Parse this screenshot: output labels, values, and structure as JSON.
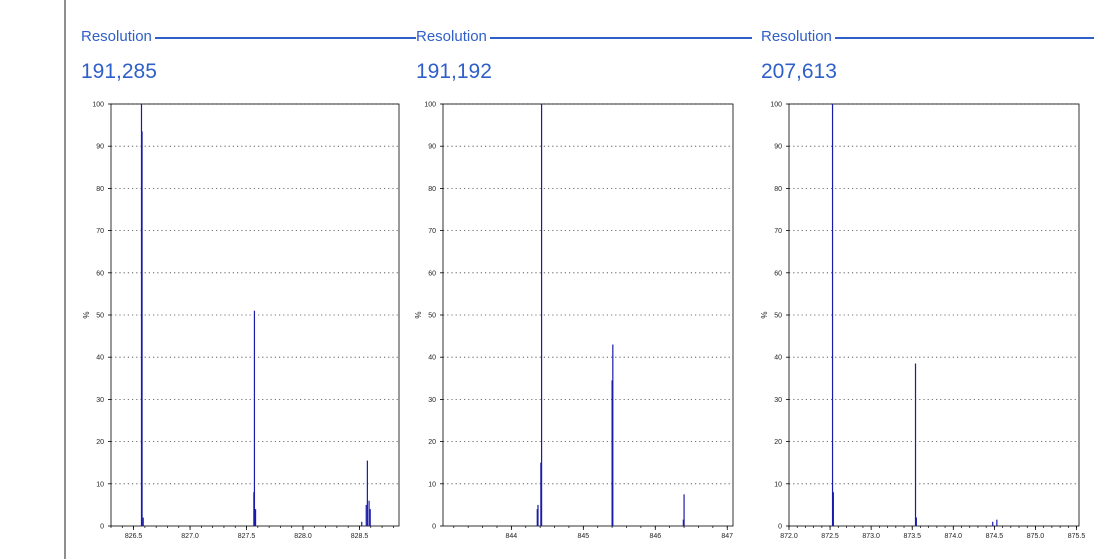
{
  "colors": {
    "accent": "#2f5fc8",
    "peak": "#1b1ba8",
    "grid": "#444444"
  },
  "panels": [
    {
      "resolution_label": "Resolution",
      "resolution_value": "191,285"
    },
    {
      "resolution_label": "Resolution",
      "resolution_value": "191,192"
    },
    {
      "resolution_label": "Resolution",
      "resolution_value": "207,613"
    }
  ],
  "chart_data": [
    {
      "type": "line",
      "ylabel": "%",
      "ylim": [
        0,
        100
      ],
      "yticks": [
        0,
        10,
        20,
        30,
        40,
        50,
        60,
        70,
        80,
        90,
        100
      ],
      "xlim": [
        826.3,
        828.85
      ],
      "xticks": [
        826.5,
        827.0,
        827.5,
        828.0,
        828.5
      ],
      "xtick_labels": [
        "826.5",
        "827.0",
        "827.5",
        "828.0",
        "828.5"
      ],
      "grid": "horizontal dotted",
      "peaks": [
        {
          "x": 826.57,
          "y": 100
        },
        {
          "x": 826.575,
          "y": 93.5
        },
        {
          "x": 826.585,
          "y": 2
        },
        {
          "x": 827.57,
          "y": 51
        },
        {
          "x": 827.565,
          "y": 8
        },
        {
          "x": 827.58,
          "y": 4
        },
        {
          "x": 828.52,
          "y": 1
        },
        {
          "x": 828.56,
          "y": 5
        },
        {
          "x": 828.57,
          "y": 15.5
        },
        {
          "x": 828.585,
          "y": 6
        },
        {
          "x": 828.595,
          "y": 4
        }
      ]
    },
    {
      "type": "line",
      "ylabel": "%",
      "ylim": [
        0,
        100
      ],
      "yticks": [
        0,
        10,
        20,
        30,
        40,
        50,
        60,
        70,
        80,
        90,
        100
      ],
      "xlim": [
        843.05,
        847.08
      ],
      "xticks": [
        844,
        845,
        846,
        847
      ],
      "xtick_labels": [
        "844",
        "845",
        "846",
        "847"
      ],
      "grid": "horizontal dotted",
      "peaks": [
        {
          "x": 844.36,
          "y": 4
        },
        {
          "x": 844.37,
          "y": 5
        },
        {
          "x": 844.41,
          "y": 15
        },
        {
          "x": 844.42,
          "y": 100
        },
        {
          "x": 845.41,
          "y": 43
        },
        {
          "x": 845.4,
          "y": 34.5
        },
        {
          "x": 846.4,
          "y": 7.5
        },
        {
          "x": 846.39,
          "y": 1.5
        }
      ]
    },
    {
      "type": "line",
      "ylabel": "%",
      "ylim": [
        0,
        100
      ],
      "yticks": [
        0,
        10,
        20,
        30,
        40,
        50,
        60,
        70,
        80,
        90,
        100
      ],
      "xlim": [
        872.0,
        875.53
      ],
      "xticks": [
        872.0,
        872.5,
        873.0,
        873.5,
        874.0,
        874.5,
        875.0,
        875.5
      ],
      "xtick_labels": [
        "872.0",
        "872.5",
        "873.0",
        "873.5",
        "874.0",
        "874.5",
        "875.0",
        "875.5"
      ],
      "grid": "horizontal dotted",
      "peaks": [
        {
          "x": 872.53,
          "y": 100
        },
        {
          "x": 872.54,
          "y": 8
        },
        {
          "x": 873.54,
          "y": 38.5
        },
        {
          "x": 873.55,
          "y": 2
        },
        {
          "x": 874.48,
          "y": 1
        },
        {
          "x": 874.53,
          "y": 1.5
        }
      ]
    }
  ]
}
